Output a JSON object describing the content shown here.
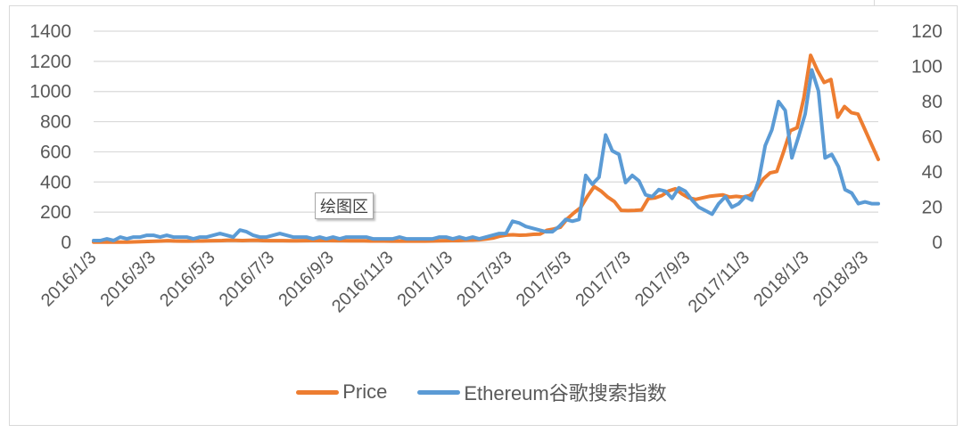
{
  "chart_data": {
    "type": "line",
    "title": "",
    "xlabel": "",
    "ylabel": "",
    "y_left": {
      "min": 0,
      "max": 1400,
      "step": 200,
      "ticks": [
        "0",
        "200",
        "400",
        "600",
        "800",
        "1000",
        "1200",
        "1400"
      ]
    },
    "y_right": {
      "min": 0,
      "max": 120,
      "step": 20,
      "ticks": [
        "0",
        "20",
        "40",
        "60",
        "80",
        "100",
        "120"
      ]
    },
    "x_tick_labels": [
      "2016/1/3",
      "2016/3/3",
      "2016/5/3",
      "2016/7/3",
      "2016/9/3",
      "2016/11/3",
      "2017/1/3",
      "2017/3/3",
      "2017/5/3",
      "2017/7/3",
      "2017/9/3",
      "2017/11/3",
      "2018/1/3",
      "2018/3/3"
    ],
    "grid": true,
    "legend_position": "bottom",
    "series": [
      {
        "name": "Price",
        "axis": "left",
        "color": "#ED7D31",
        "values": [
          1,
          1,
          1,
          2,
          2,
          2,
          3,
          4,
          6,
          7,
          9,
          11,
          9,
          8,
          8,
          9,
          9,
          10,
          11,
          12,
          14,
          13,
          12,
          13,
          14,
          12,
          11,
          11,
          11,
          10,
          10,
          11,
          12,
          12,
          12,
          12,
          11,
          11,
          10,
          10,
          10,
          9,
          9,
          9,
          8,
          8,
          8,
          8,
          8,
          8,
          9,
          10,
          11,
          12,
          12,
          14,
          15,
          17,
          22,
          28,
          40,
          48,
          50,
          47,
          49,
          53,
          55,
          80,
          88,
          100,
          155,
          195,
          230,
          305,
          370,
          340,
          300,
          270,
          212,
          210,
          212,
          215,
          290,
          295,
          310,
          340,
          355,
          320,
          295,
          285,
          295,
          305,
          310,
          315,
          300,
          305,
          300,
          310,
          350,
          420,
          460,
          470,
          600,
          740,
          760,
          960,
          1240,
          1140,
          1060,
          1080,
          830,
          900,
          860,
          850,
          750,
          650,
          550
        ]
      },
      {
        "name": "Ethereum谷歌搜索指数",
        "axis": "right",
        "color": "#5B9BD5",
        "values": [
          1,
          1,
          2,
          1,
          3,
          2,
          3,
          3,
          4,
          4,
          3,
          4,
          3,
          3,
          3,
          2,
          3,
          3,
          4,
          5,
          4,
          3,
          7,
          6,
          4,
          3,
          3,
          4,
          5,
          4,
          3,
          3,
          3,
          2,
          3,
          2,
          3,
          2,
          3,
          3,
          3,
          3,
          2,
          2,
          2,
          2,
          3,
          2,
          2,
          2,
          2,
          2,
          3,
          3,
          2,
          3,
          2,
          3,
          2,
          3,
          4,
          5,
          5,
          12,
          11,
          9,
          8,
          7,
          6,
          6,
          9,
          13,
          12,
          13,
          38,
          33,
          37,
          61,
          52,
          50,
          34,
          38,
          35,
          27,
          26,
          30,
          29,
          25,
          31,
          29,
          24,
          20,
          18,
          16,
          22,
          26,
          20,
          22,
          26,
          24,
          35,
          55,
          64,
          80,
          75,
          48,
          60,
          73,
          98,
          86,
          48,
          50,
          43,
          30,
          28,
          22,
          23,
          22,
          22
        ]
      }
    ]
  },
  "legend": {
    "items": [
      {
        "label": "Price",
        "color": "#ED7D31"
      },
      {
        "label": "Ethereum谷歌搜索指数",
        "color": "#5B9BD5"
      }
    ]
  },
  "tooltip": {
    "text": "绘图区"
  }
}
